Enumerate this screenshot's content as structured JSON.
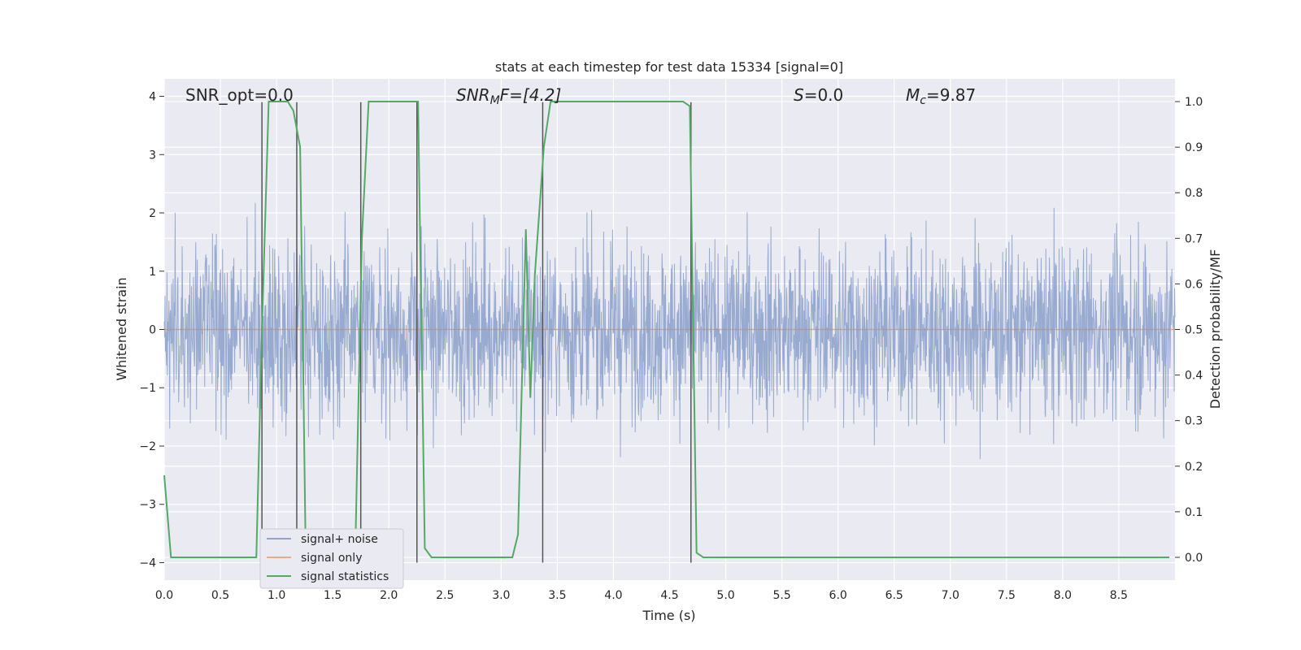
{
  "chart_data": {
    "type": "line",
    "title": "stats at each timestep for test data 15334 [signal=0]",
    "xlabel": "Time (s)",
    "ylabel": "Whitened strain",
    "ylabel_right": "Detection probability/MF",
    "xlim": [
      0,
      9
    ],
    "ylim": [
      -4.3,
      4.3
    ],
    "ylim_right": [
      -0.05,
      1.05
    ],
    "xticks": [
      "0.0",
      "0.5",
      "1.0",
      "1.5",
      "2.0",
      "2.5",
      "3.0",
      "3.5",
      "4.0",
      "4.5",
      "5.0",
      "5.5",
      "6.0",
      "6.5",
      "7.0",
      "7.5",
      "8.0",
      "8.5"
    ],
    "xtick_values": [
      0,
      0.5,
      1,
      1.5,
      2,
      2.5,
      3,
      3.5,
      4,
      4.5,
      5,
      5.5,
      6,
      6.5,
      7,
      7.5,
      8,
      8.5
    ],
    "yticks": [
      "−4",
      "−3",
      "−2",
      "−1",
      "0",
      "1",
      "2",
      "3",
      "4"
    ],
    "ytick_values": [
      -4,
      -3,
      -2,
      -1,
      0,
      1,
      2,
      3,
      4
    ],
    "yticks_right": [
      "0.0",
      "0.1",
      "0.2",
      "0.3",
      "0.4",
      "0.5",
      "0.6",
      "0.7",
      "0.8",
      "0.9",
      "1.0"
    ],
    "ytick_values_right": [
      0,
      0.1,
      0.2,
      0.3,
      0.4,
      0.5,
      0.6,
      0.7,
      0.8,
      0.9,
      1.0
    ],
    "grid": true,
    "legend_position": "lower-left",
    "annotations": {
      "snr_opt": "SNR_opt=0.0",
      "snr_mf_prefix": "SNR",
      "snr_mf_sub": "M",
      "snr_mf_suffix": "F=[4.2]",
      "s_prefix": "S",
      "s_suffix": "=0.0",
      "mc_prefix": "M",
      "mc_sub": "c",
      "mc_suffix": "=9.87"
    },
    "series": [
      {
        "name": "signal+ noise",
        "color": "#8fa3cc",
        "kind": "noise",
        "amplitude_range": [
          -3.8,
          3.8
        ]
      },
      {
        "name": "signal only",
        "color": "#dd8452",
        "kind": "flat",
        "value": 0
      },
      {
        "name": "signal statistics",
        "color": "#55a868",
        "axis": "right",
        "x": [
          0.0,
          0.06,
          0.12,
          0.82,
          0.87,
          0.93,
          1.0,
          1.1,
          1.15,
          1.21,
          1.26,
          1.7,
          1.76,
          1.82,
          2.2,
          2.26,
          2.32,
          2.38,
          3.1,
          3.15,
          3.22,
          3.26,
          3.3,
          3.38,
          3.44,
          4.62,
          4.68,
          4.74,
          4.8,
          8.95
        ],
        "y": [
          0.18,
          0.0,
          0.0,
          0.0,
          0.5,
          1.0,
          1.0,
          1.0,
          0.98,
          0.9,
          0.0,
          0.0,
          0.7,
          1.0,
          1.0,
          1.0,
          0.02,
          0.0,
          0.0,
          0.05,
          0.72,
          0.35,
          0.62,
          0.9,
          1.0,
          1.0,
          0.99,
          0.01,
          0.0,
          0.0
        ]
      }
    ],
    "vertical_lines_x": [
      0.87,
      1.18,
      1.75,
      2.25,
      3.37,
      4.69
    ]
  }
}
